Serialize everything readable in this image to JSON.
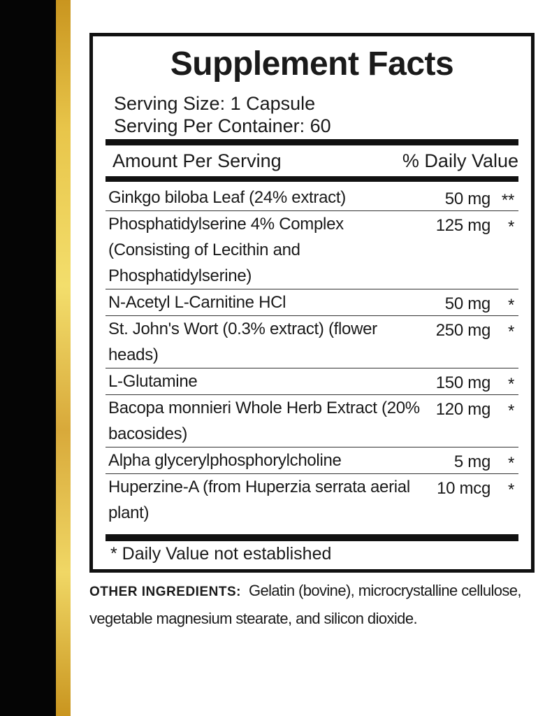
{
  "colors": {
    "left_bar": "#050505",
    "gold_bar": "#e8c54a"
  },
  "title": "Supplement Facts",
  "serving_size": "Serving Size: 1 Capsule",
  "servings_per_container": "Serving Per Container: 60",
  "header": {
    "amount": "Amount Per Serving",
    "dv": "% Daily Value"
  },
  "rows": [
    {
      "name": "Ginkgo biloba Leaf (24% extract)",
      "amount": "50 mg",
      "dv": "**"
    },
    {
      "name": "Phosphatidylserine 4% Complex (Consisting of Lecithin and Phosphatidylserine)",
      "amount": "125 mg",
      "dv": "*"
    },
    {
      "name": "N-Acetyl L-Carnitine HCl",
      "amount": "50 mg",
      "dv": "*"
    },
    {
      "name": "St. John's Wort (0.3% extract) (flower heads)",
      "amount": "250 mg",
      "dv": "*"
    },
    {
      "name": "L-Glutamine",
      "amount": "150 mg",
      "dv": "*"
    },
    {
      "name": "Bacopa monnieri Whole Herb Extract (20% bacosides)",
      "amount": "120 mg",
      "dv": "*"
    },
    {
      "name": "Alpha glycerylphosphorylcholine",
      "amount": "5 mg",
      "dv": "*"
    },
    {
      "name": "Huperzine-A (from Huperzia serrata aerial plant)",
      "amount": "10 mcg",
      "dv": "*"
    }
  ],
  "footnote": "* Daily Value not established",
  "other_ingredients": {
    "label": "OTHER INGREDIENTS:",
    "text": "Gelatin (bovine), microcrystalline cellulose, vegetable magnesium stearate, and silicon dioxide."
  }
}
